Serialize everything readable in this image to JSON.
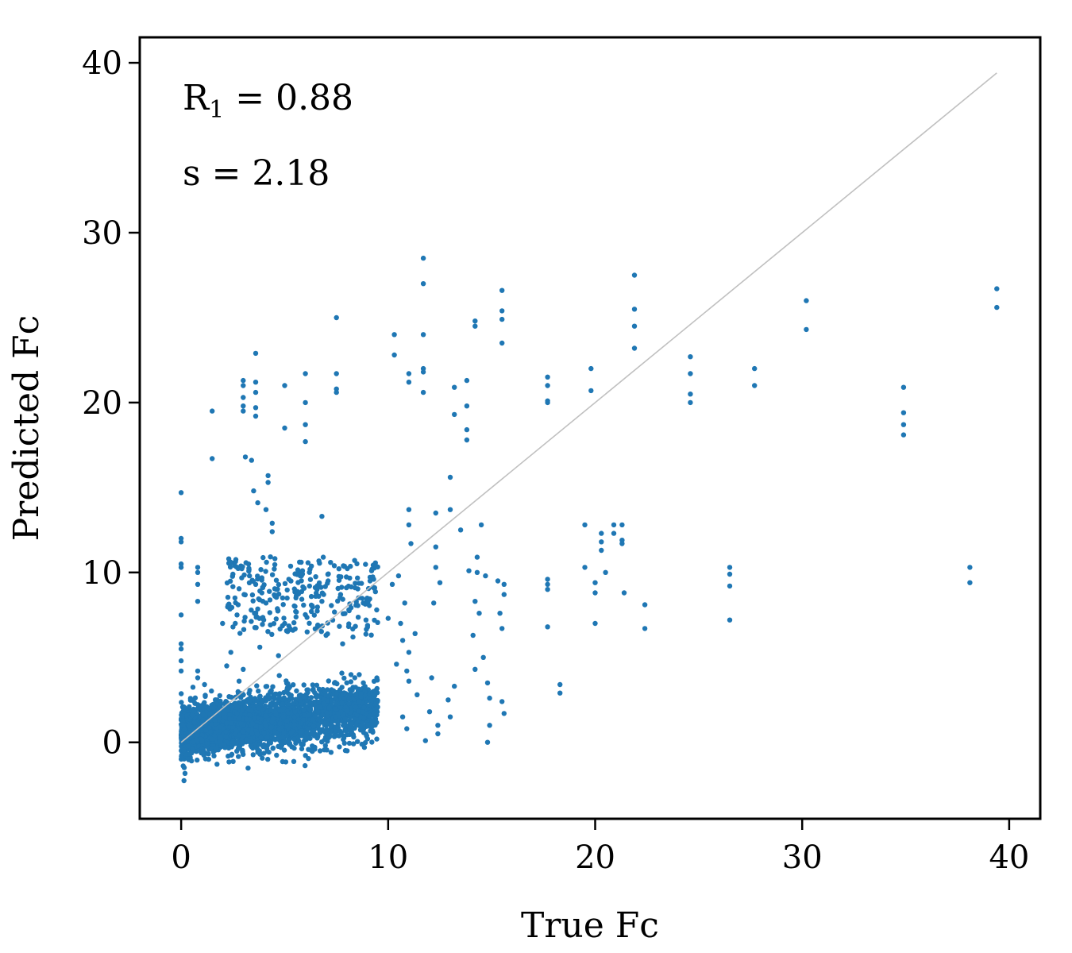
{
  "chart_data": {
    "type": "scatter",
    "xlabel": "True Fc",
    "ylabel": "Predicted Fc",
    "xlim": [
      -2,
      41.5
    ],
    "ylim": [
      -4.5,
      41.5
    ],
    "x_ticks": [
      0,
      10,
      20,
      30,
      40
    ],
    "y_ticks": [
      0,
      10,
      20,
      30,
      40
    ],
    "grid": false,
    "point_color": "#1f77b4",
    "reference_line": {
      "from": [
        0,
        0
      ],
      "to": [
        39.4,
        39.4
      ],
      "color": "#c0c0c0"
    },
    "annotations": [
      {
        "prefix": "R",
        "subscript": "1",
        "suffix": " = 0.88"
      },
      {
        "text": "s = 2.18"
      }
    ],
    "series": [
      {
        "cluster_center": [
          3.5,
          1.0
        ],
        "points": [
          [
            0.0,
            14.7
          ],
          [
            0.0,
            12.0
          ],
          [
            0.0,
            11.8
          ],
          [
            0.0,
            10.5
          ],
          [
            0.0,
            10.3
          ],
          [
            0.0,
            7.5
          ],
          [
            0.0,
            5.8
          ],
          [
            0.0,
            5.5
          ],
          [
            0.0,
            4.8
          ],
          [
            0.0,
            4.2
          ],
          [
            0.8,
            10.3
          ],
          [
            0.8,
            10.0
          ],
          [
            0.8,
            9.3
          ],
          [
            0.8,
            8.3
          ],
          [
            0.8,
            4.2
          ],
          [
            0.8,
            3.8
          ],
          [
            1.5,
            19.5
          ],
          [
            1.5,
            16.7
          ],
          [
            2.0,
            7.0
          ],
          [
            2.3,
            10.8
          ],
          [
            2.5,
            9.9
          ],
          [
            2.6,
            8.5
          ],
          [
            2.7,
            7.5
          ],
          [
            2.4,
            5.3
          ],
          [
            2.2,
            4.5
          ],
          [
            3.0,
            21.3
          ],
          [
            3.0,
            21.0
          ],
          [
            3.0,
            20.3
          ],
          [
            3.0,
            19.8
          ],
          [
            3.0,
            19.5
          ],
          [
            3.1,
            16.8
          ],
          [
            3.6,
            22.9
          ],
          [
            3.6,
            21.2
          ],
          [
            3.6,
            20.6
          ],
          [
            3.6,
            19.7
          ],
          [
            3.6,
            19.2
          ],
          [
            3.4,
            16.6
          ],
          [
            3.5,
            14.8
          ],
          [
            3.7,
            14.1
          ],
          [
            4.2,
            15.7
          ],
          [
            4.2,
            15.3
          ],
          [
            4.1,
            13.7
          ],
          [
            4.4,
            12.9
          ],
          [
            4.4,
            12.4
          ],
          [
            5.0,
            21.0
          ],
          [
            5.0,
            18.5
          ],
          [
            6.0,
            21.7
          ],
          [
            6.0,
            20.0
          ],
          [
            6.0,
            18.7
          ],
          [
            6.0,
            17.7
          ],
          [
            7.5,
            25.0
          ],
          [
            7.5,
            21.7
          ],
          [
            7.5,
            20.8
          ],
          [
            7.5,
            20.6
          ],
          [
            6.8,
            13.3
          ],
          [
            3.3,
            9.8
          ],
          [
            3.6,
            9.3
          ],
          [
            3.9,
            8.8
          ],
          [
            4.1,
            8.2
          ],
          [
            4.5,
            10.2
          ],
          [
            4.6,
            9.0
          ],
          [
            4.9,
            8.5
          ],
          [
            5.2,
            9.6
          ],
          [
            5.5,
            8.0
          ],
          [
            5.8,
            10.6
          ],
          [
            6.2,
            9.2
          ],
          [
            6.5,
            8.6
          ],
          [
            6.8,
            8.3
          ],
          [
            7.1,
            9.5
          ],
          [
            7.4,
            10.4
          ],
          [
            7.7,
            8.7
          ],
          [
            8.1,
            7.8
          ],
          [
            8.4,
            9.1
          ],
          [
            8.8,
            8.2
          ],
          [
            9.2,
            10.1
          ],
          [
            5.0,
            7.0
          ],
          [
            5.4,
            6.6
          ],
          [
            6.6,
            6.9
          ],
          [
            7.0,
            6.3
          ],
          [
            7.8,
            5.8
          ],
          [
            8.3,
            6.2
          ],
          [
            4.7,
            5.1
          ],
          [
            3.8,
            5.6
          ],
          [
            3.0,
            4.3
          ],
          [
            2.8,
            3.6
          ],
          [
            10.3,
            24.0
          ],
          [
            10.3,
            22.8
          ],
          [
            11.0,
            21.7
          ],
          [
            11.0,
            21.2
          ],
          [
            11.7,
            28.5
          ],
          [
            11.7,
            27.0
          ],
          [
            11.7,
            24.0
          ],
          [
            11.7,
            22.0
          ],
          [
            11.7,
            21.8
          ],
          [
            11.7,
            20.6
          ],
          [
            13.0,
            15.6
          ],
          [
            13.2,
            20.9
          ],
          [
            13.2,
            19.3
          ],
          [
            13.8,
            21.3
          ],
          [
            13.8,
            19.8
          ],
          [
            13.8,
            18.4
          ],
          [
            13.8,
            17.8
          ],
          [
            14.2,
            24.8
          ],
          [
            14.2,
            24.5
          ],
          [
            15.5,
            26.6
          ],
          [
            15.5,
            25.4
          ],
          [
            15.5,
            24.9
          ],
          [
            15.5,
            23.5
          ],
          [
            11.0,
            13.7
          ],
          [
            11.0,
            12.8
          ],
          [
            11.1,
            11.7
          ],
          [
            10.5,
            9.8
          ],
          [
            10.8,
            8.2
          ],
          [
            10.6,
            7.0
          ],
          [
            11.3,
            6.4
          ],
          [
            11.0,
            5.3
          ],
          [
            12.3,
            13.5
          ],
          [
            12.3,
            11.5
          ],
          [
            12.3,
            10.3
          ],
          [
            12.5,
            9.4
          ],
          [
            12.2,
            8.2
          ],
          [
            13.0,
            13.7
          ],
          [
            13.5,
            12.5
          ],
          [
            13.9,
            10.1
          ],
          [
            14.5,
            12.8
          ],
          [
            14.3,
            10.9
          ],
          [
            14.3,
            10.0
          ],
          [
            14.7,
            9.8
          ],
          [
            14.2,
            8.3
          ],
          [
            14.4,
            7.6
          ],
          [
            14.1,
            6.3
          ],
          [
            14.6,
            5.0
          ],
          [
            14.2,
            4.3
          ],
          [
            15.3,
            9.5
          ],
          [
            15.6,
            9.3
          ],
          [
            15.6,
            8.7
          ],
          [
            15.5,
            6.7
          ],
          [
            15.4,
            7.6
          ],
          [
            17.7,
            21.5
          ],
          [
            17.7,
            21.0
          ],
          [
            17.7,
            20.1
          ],
          [
            17.7,
            20.0
          ],
          [
            17.7,
            9.6
          ],
          [
            17.7,
            9.3
          ],
          [
            17.7,
            9.0
          ],
          [
            17.7,
            6.8
          ],
          [
            18.3,
            3.4
          ],
          [
            18.3,
            2.9
          ],
          [
            19.5,
            12.8
          ],
          [
            19.5,
            10.3
          ],
          [
            19.8,
            22.0
          ],
          [
            19.8,
            20.7
          ],
          [
            20.0,
            9.4
          ],
          [
            20.0,
            8.8
          ],
          [
            20.0,
            7.0
          ],
          [
            20.5,
            10.0
          ],
          [
            20.3,
            12.3
          ],
          [
            20.3,
            11.8
          ],
          [
            20.3,
            11.3
          ],
          [
            20.9,
            12.8
          ],
          [
            20.9,
            12.3
          ],
          [
            21.3,
            12.8
          ],
          [
            21.3,
            11.9
          ],
          [
            21.3,
            11.7
          ],
          [
            21.4,
            8.8
          ],
          [
            21.9,
            27.5
          ],
          [
            21.9,
            25.5
          ],
          [
            21.9,
            24.5
          ],
          [
            21.9,
            23.2
          ],
          [
            22.4,
            8.1
          ],
          [
            22.4,
            6.7
          ],
          [
            24.6,
            22.7
          ],
          [
            24.6,
            21.7
          ],
          [
            24.6,
            20.5
          ],
          [
            24.6,
            20.0
          ],
          [
            26.5,
            10.3
          ],
          [
            26.5,
            9.9
          ],
          [
            26.5,
            9.2
          ],
          [
            26.5,
            7.2
          ],
          [
            27.7,
            22.0
          ],
          [
            27.7,
            21.0
          ],
          [
            30.2,
            26.0
          ],
          [
            30.2,
            24.3
          ],
          [
            34.9,
            20.9
          ],
          [
            34.9,
            19.4
          ],
          [
            34.9,
            18.7
          ],
          [
            34.9,
            18.1
          ],
          [
            38.1,
            10.3
          ],
          [
            38.1,
            9.4
          ],
          [
            39.4,
            26.7
          ],
          [
            39.4,
            25.6
          ],
          [
            10.9,
            4.2
          ],
          [
            11.0,
            3.6
          ],
          [
            11.4,
            2.8
          ],
          [
            10.7,
            1.5
          ],
          [
            10.9,
            0.8
          ],
          [
            12.0,
            1.8
          ],
          [
            12.4,
            1.0
          ],
          [
            12.9,
            2.5
          ],
          [
            13.0,
            1.5
          ],
          [
            13.2,
            3.3
          ],
          [
            12.1,
            3.8
          ],
          [
            14.8,
            3.5
          ],
          [
            14.9,
            2.6
          ],
          [
            15.5,
            2.4
          ],
          [
            15.6,
            1.7
          ],
          [
            14.9,
            1.0
          ],
          [
            14.8,
            0.0
          ],
          [
            11.8,
            0.1
          ],
          [
            12.4,
            0.5
          ],
          [
            10.4,
            4.6
          ],
          [
            10.7,
            6.0
          ],
          [
            10.2,
            9.3
          ],
          [
            10.0,
            7.3
          ],
          [
            9.3,
            9.6
          ]
        ]
      }
    ]
  }
}
